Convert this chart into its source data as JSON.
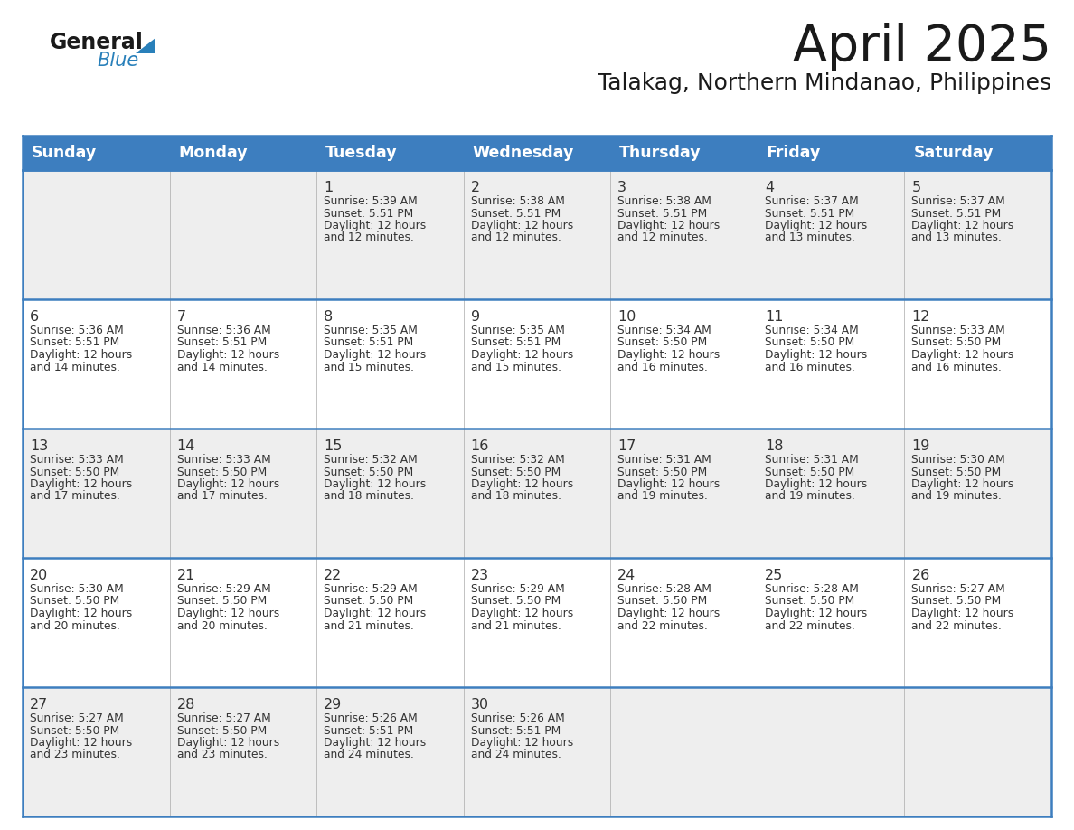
{
  "title": "April 2025",
  "subtitle": "Talakag, Northern Mindanao, Philippines",
  "days_of_week": [
    "Sunday",
    "Monday",
    "Tuesday",
    "Wednesday",
    "Thursday",
    "Friday",
    "Saturday"
  ],
  "header_bg": "#3D7EBF",
  "header_text_color": "#FFFFFF",
  "row_bg_even": "#EEEEEE",
  "row_bg_odd": "#FFFFFF",
  "border_color": "#3D7EBF",
  "text_color": "#333333",
  "logo_black": "#1A1A1A",
  "logo_blue": "#2980BA",
  "calendar_data": [
    [
      {
        "day": null,
        "info": ""
      },
      {
        "day": null,
        "info": ""
      },
      {
        "day": 1,
        "info": "Sunrise: 5:39 AM\nSunset: 5:51 PM\nDaylight: 12 hours\nand 12 minutes."
      },
      {
        "day": 2,
        "info": "Sunrise: 5:38 AM\nSunset: 5:51 PM\nDaylight: 12 hours\nand 12 minutes."
      },
      {
        "day": 3,
        "info": "Sunrise: 5:38 AM\nSunset: 5:51 PM\nDaylight: 12 hours\nand 12 minutes."
      },
      {
        "day": 4,
        "info": "Sunrise: 5:37 AM\nSunset: 5:51 PM\nDaylight: 12 hours\nand 13 minutes."
      },
      {
        "day": 5,
        "info": "Sunrise: 5:37 AM\nSunset: 5:51 PM\nDaylight: 12 hours\nand 13 minutes."
      }
    ],
    [
      {
        "day": 6,
        "info": "Sunrise: 5:36 AM\nSunset: 5:51 PM\nDaylight: 12 hours\nand 14 minutes."
      },
      {
        "day": 7,
        "info": "Sunrise: 5:36 AM\nSunset: 5:51 PM\nDaylight: 12 hours\nand 14 minutes."
      },
      {
        "day": 8,
        "info": "Sunrise: 5:35 AM\nSunset: 5:51 PM\nDaylight: 12 hours\nand 15 minutes."
      },
      {
        "day": 9,
        "info": "Sunrise: 5:35 AM\nSunset: 5:51 PM\nDaylight: 12 hours\nand 15 minutes."
      },
      {
        "day": 10,
        "info": "Sunrise: 5:34 AM\nSunset: 5:50 PM\nDaylight: 12 hours\nand 16 minutes."
      },
      {
        "day": 11,
        "info": "Sunrise: 5:34 AM\nSunset: 5:50 PM\nDaylight: 12 hours\nand 16 minutes."
      },
      {
        "day": 12,
        "info": "Sunrise: 5:33 AM\nSunset: 5:50 PM\nDaylight: 12 hours\nand 16 minutes."
      }
    ],
    [
      {
        "day": 13,
        "info": "Sunrise: 5:33 AM\nSunset: 5:50 PM\nDaylight: 12 hours\nand 17 minutes."
      },
      {
        "day": 14,
        "info": "Sunrise: 5:33 AM\nSunset: 5:50 PM\nDaylight: 12 hours\nand 17 minutes."
      },
      {
        "day": 15,
        "info": "Sunrise: 5:32 AM\nSunset: 5:50 PM\nDaylight: 12 hours\nand 18 minutes."
      },
      {
        "day": 16,
        "info": "Sunrise: 5:32 AM\nSunset: 5:50 PM\nDaylight: 12 hours\nand 18 minutes."
      },
      {
        "day": 17,
        "info": "Sunrise: 5:31 AM\nSunset: 5:50 PM\nDaylight: 12 hours\nand 19 minutes."
      },
      {
        "day": 18,
        "info": "Sunrise: 5:31 AM\nSunset: 5:50 PM\nDaylight: 12 hours\nand 19 minutes."
      },
      {
        "day": 19,
        "info": "Sunrise: 5:30 AM\nSunset: 5:50 PM\nDaylight: 12 hours\nand 19 minutes."
      }
    ],
    [
      {
        "day": 20,
        "info": "Sunrise: 5:30 AM\nSunset: 5:50 PM\nDaylight: 12 hours\nand 20 minutes."
      },
      {
        "day": 21,
        "info": "Sunrise: 5:29 AM\nSunset: 5:50 PM\nDaylight: 12 hours\nand 20 minutes."
      },
      {
        "day": 22,
        "info": "Sunrise: 5:29 AM\nSunset: 5:50 PM\nDaylight: 12 hours\nand 21 minutes."
      },
      {
        "day": 23,
        "info": "Sunrise: 5:29 AM\nSunset: 5:50 PM\nDaylight: 12 hours\nand 21 minutes."
      },
      {
        "day": 24,
        "info": "Sunrise: 5:28 AM\nSunset: 5:50 PM\nDaylight: 12 hours\nand 22 minutes."
      },
      {
        "day": 25,
        "info": "Sunrise: 5:28 AM\nSunset: 5:50 PM\nDaylight: 12 hours\nand 22 minutes."
      },
      {
        "day": 26,
        "info": "Sunrise: 5:27 AM\nSunset: 5:50 PM\nDaylight: 12 hours\nand 22 minutes."
      }
    ],
    [
      {
        "day": 27,
        "info": "Sunrise: 5:27 AM\nSunset: 5:50 PM\nDaylight: 12 hours\nand 23 minutes."
      },
      {
        "day": 28,
        "info": "Sunrise: 5:27 AM\nSunset: 5:50 PM\nDaylight: 12 hours\nand 23 minutes."
      },
      {
        "day": 29,
        "info": "Sunrise: 5:26 AM\nSunset: 5:51 PM\nDaylight: 12 hours\nand 24 minutes."
      },
      {
        "day": 30,
        "info": "Sunrise: 5:26 AM\nSunset: 5:51 PM\nDaylight: 12 hours\nand 24 minutes."
      },
      {
        "day": null,
        "info": ""
      },
      {
        "day": null,
        "info": ""
      },
      {
        "day": null,
        "info": ""
      }
    ]
  ],
  "figsize": [
    11.88,
    9.18
  ],
  "dpi": 100
}
